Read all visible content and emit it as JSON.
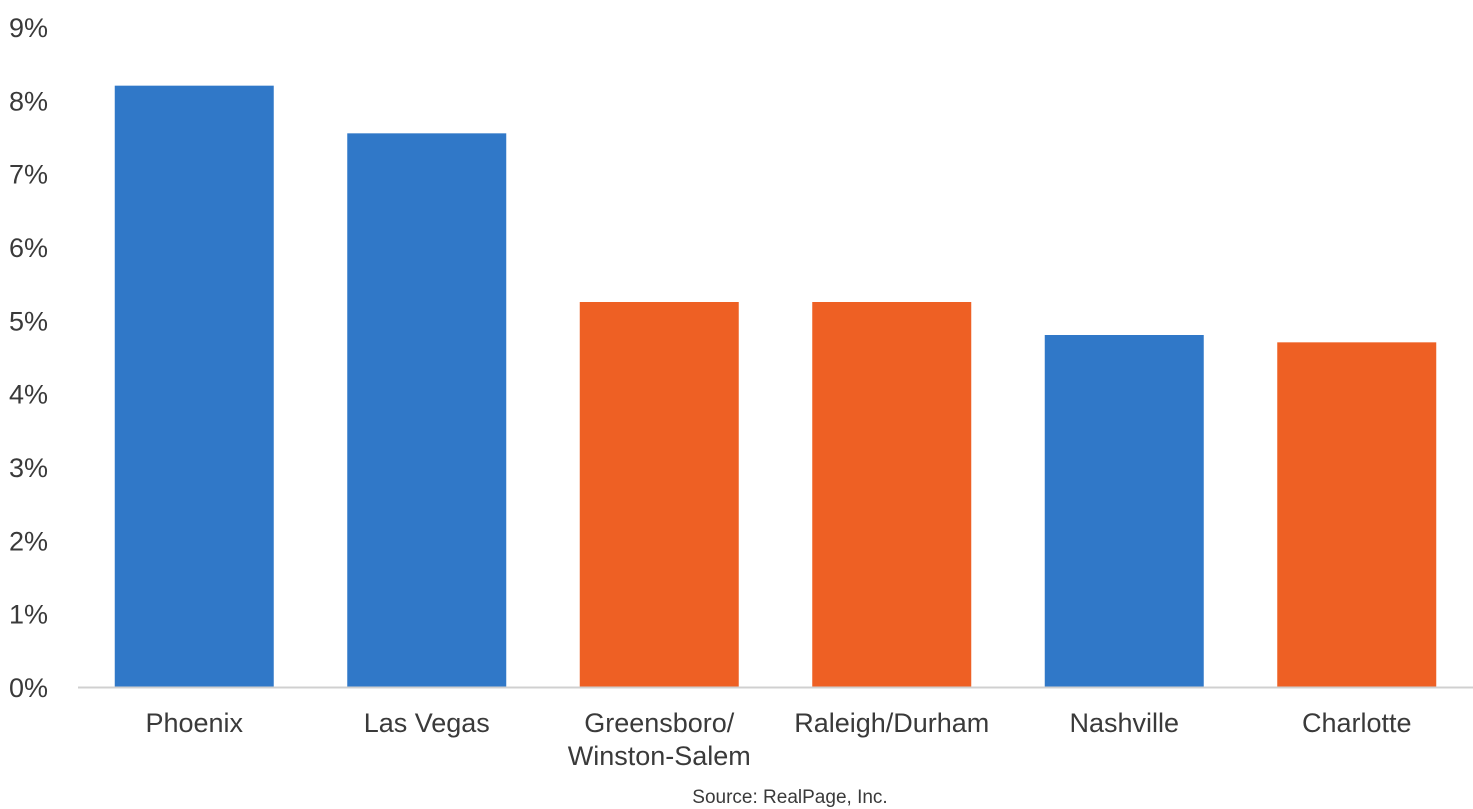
{
  "chart_data": {
    "type": "bar",
    "title": "",
    "xlabel": "",
    "ylabel": "",
    "categories": [
      [
        "Phoenix"
      ],
      [
        "Las Vegas"
      ],
      [
        "Greensboro/",
        "Winston-Salem"
      ],
      [
        "Raleigh/Durham"
      ],
      [
        "Nashville"
      ],
      [
        "Charlotte"
      ]
    ],
    "values": [
      8.2,
      7.55,
      5.25,
      5.25,
      4.8,
      4.7
    ],
    "bar_colors": [
      "#3078C8",
      "#3078C8",
      "#EE6024",
      "#EE6024",
      "#3078C8",
      "#EE6024"
    ],
    "ylim": [
      0,
      9
    ],
    "yticks": [
      0,
      1,
      2,
      3,
      4,
      5,
      6,
      7,
      8,
      9
    ],
    "ytick_labels": [
      "0%",
      "1%",
      "2%",
      "3%",
      "4%",
      "5%",
      "6%",
      "7%",
      "8%",
      "9%"
    ],
    "grid": false,
    "legend": "none",
    "axis_color": "#D0D0D0"
  },
  "source_note": "Source: RealPage, Inc."
}
